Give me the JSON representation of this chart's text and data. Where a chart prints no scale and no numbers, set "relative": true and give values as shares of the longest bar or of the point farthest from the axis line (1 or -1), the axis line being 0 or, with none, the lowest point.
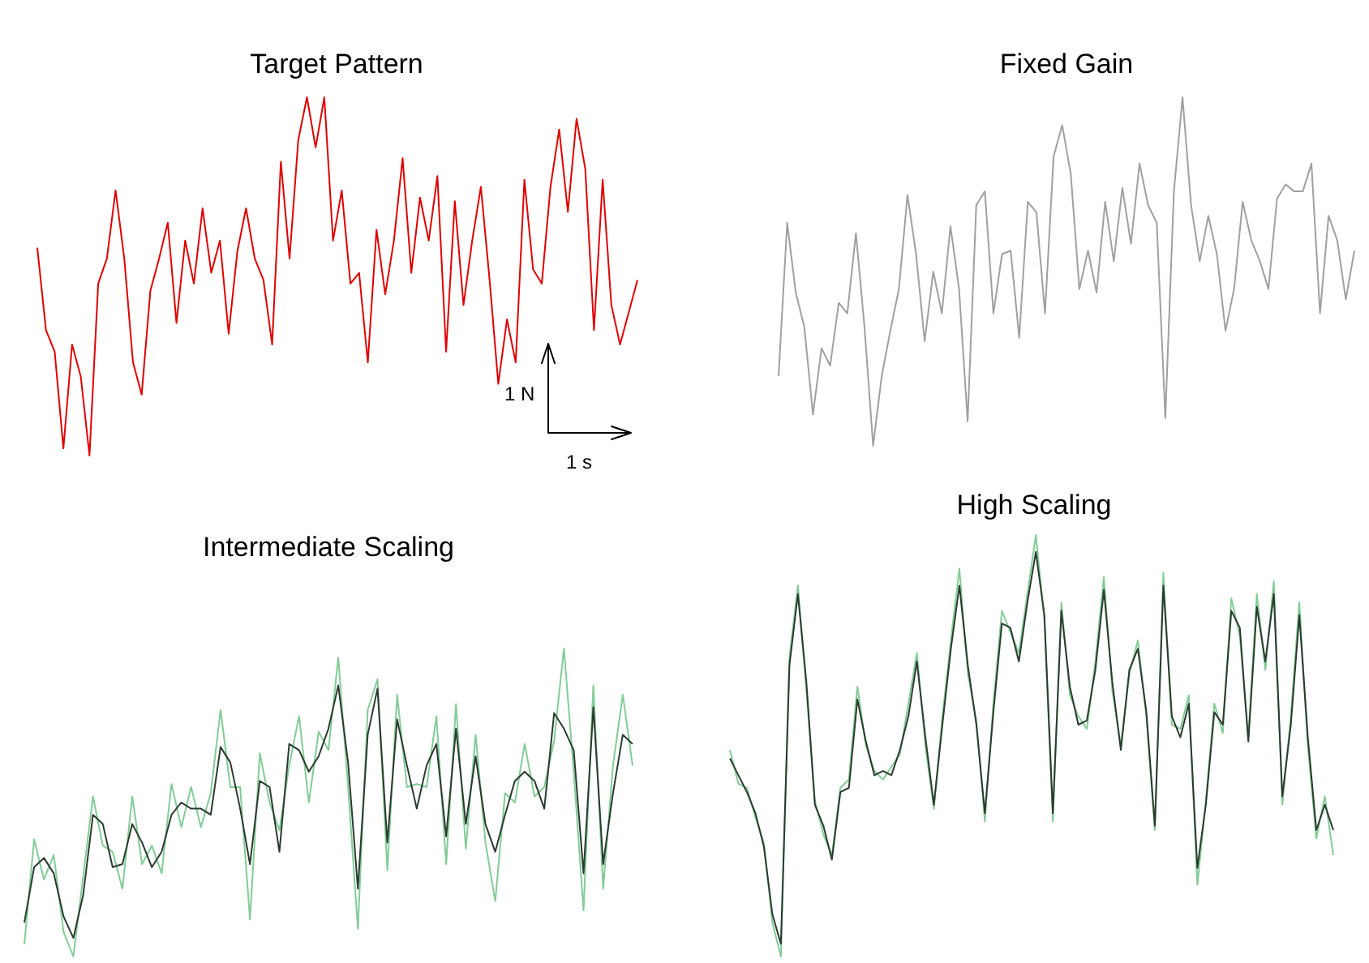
{
  "chart_data": [
    {
      "type": "line",
      "title": "Target Pattern",
      "relative": true,
      "annotations": [
        "1 N",
        "1 s"
      ],
      "categories": [
        null,
        null,
        null,
        null,
        null,
        null,
        null,
        null,
        null,
        null,
        null,
        null,
        null,
        null,
        null,
        null,
        null,
        null,
        null,
        null,
        null,
        null,
        null,
        null,
        null,
        null,
        null,
        null,
        null,
        null,
        null,
        null,
        null,
        null,
        null,
        null,
        null,
        null,
        null,
        null,
        null,
        null,
        null,
        null,
        null,
        null,
        null,
        null,
        null,
        null,
        null,
        null,
        null,
        null,
        null,
        null,
        null,
        null,
        null,
        null,
        null,
        null,
        null,
        null,
        null,
        null,
        null,
        null,
        null,
        null
      ],
      "series": [
        {
          "color": "#e00000",
          "values": [
            0.58,
            0.35,
            0.29,
            0.02,
            0.31,
            0.22,
            0,
            0.48,
            0.55,
            0.74,
            0.55,
            0.26,
            0.17,
            0.46,
            0.55,
            0.65,
            0.37,
            0.6,
            0.48,
            0.69,
            0.51,
            0.6,
            0.34,
            0.57,
            0.69,
            0.55,
            0.49,
            0.31,
            0.82,
            0.55,
            0.88,
            1,
            0.86,
            1,
            0.6,
            0.74,
            0.48,
            0.51,
            0.26,
            0.63,
            0.45,
            0.6,
            0.83,
            0.51,
            0.72,
            0.6,
            0.78,
            0.29,
            0.71,
            0.42,
            0.6,
            0.75,
            0.49,
            0.2,
            0.38,
            0.26,
            0.77,
            0.52,
            0.48,
            0.75,
            0.91,
            0.68,
            0.94,
            0.8,
            0.35,
            0.77,
            0.42,
            0.31,
            0.4,
            0.49
          ]
        }
      ]
    },
    {
      "type": "line",
      "title": "Fixed Gain",
      "relative": true,
      "categories": [
        null,
        null,
        null,
        null,
        null,
        null,
        null,
        null,
        null,
        null,
        null,
        null,
        null,
        null,
        null,
        null,
        null,
        null,
        null,
        null,
        null,
        null,
        null,
        null,
        null,
        null,
        null,
        null,
        null,
        null,
        null,
        null,
        null,
        null,
        null,
        null,
        null,
        null,
        null,
        null,
        null,
        null,
        null,
        null,
        null,
        null,
        null,
        null,
        null,
        null,
        null,
        null,
        null,
        null,
        null,
        null,
        null,
        null,
        null,
        null,
        null,
        null,
        null,
        null,
        null,
        null,
        null,
        null
      ],
      "series": [
        {
          "color": "#a0a0a0",
          "values": [
            0.2,
            0.64,
            0.44,
            0.34,
            0.09,
            0.28,
            0.23,
            0.41,
            0.38,
            0.61,
            0.34,
            0,
            0.2,
            0.33,
            0.45,
            0.72,
            0.55,
            0.3,
            0.5,
            0.38,
            0.63,
            0.45,
            0.07,
            0.69,
            0.73,
            0.38,
            0.55,
            0.56,
            0.31,
            0.7,
            0.67,
            0.38,
            0.83,
            0.92,
            0.78,
            0.45,
            0.56,
            0.44,
            0.7,
            0.53,
            0.74,
            0.58,
            0.81,
            0.69,
            0.64,
            0.08,
            0.73,
            1,
            0.69,
            0.53,
            0.66,
            0.55,
            0.33,
            0.45,
            0.7,
            0.59,
            0.53,
            0.45,
            0.71,
            0.75,
            0.73,
            0.73,
            0.81,
            0.38,
            0.66,
            0.59,
            0.42,
            0.56
          ]
        }
      ]
    },
    {
      "type": "line",
      "title": "Intermediate Scaling",
      "relative": true,
      "categories": [
        null,
        null,
        null,
        null,
        null,
        null,
        null,
        null,
        null,
        null,
        null,
        null,
        null,
        null,
        null,
        null,
        null,
        null,
        null,
        null,
        null,
        null,
        null,
        null,
        null,
        null,
        null,
        null,
        null,
        null,
        null,
        null,
        null,
        null,
        null,
        null,
        null,
        null,
        null,
        null,
        null,
        null,
        null,
        null,
        null,
        null,
        null,
        null,
        null,
        null,
        null,
        null,
        null,
        null,
        null,
        null,
        null,
        null,
        null,
        null,
        null,
        null,
        null
      ],
      "series": [
        {
          "color": "#82cc96",
          "values": [
            0.04,
            0.38,
            0.25,
            0.33,
            0.08,
            0,
            0.26,
            0.52,
            0.36,
            0.34,
            0.22,
            0.52,
            0.3,
            0.36,
            0.27,
            0.56,
            0.42,
            0.55,
            0.42,
            0.53,
            0.8,
            0.55,
            0.55,
            0.12,
            0.66,
            0.5,
            0.41,
            0.62,
            0.78,
            0.5,
            0.73,
            0.67,
            0.97,
            0.55,
            0.09,
            0.8,
            0.9,
            0.28,
            0.85,
            0.55,
            0.56,
            0.55,
            0.78,
            0.3,
            0.82,
            0.35,
            0.72,
            0.37,
            0.18,
            0.53,
            0.5,
            0.69,
            0.52,
            0.55,
            0.7,
            1,
            0.6,
            0.15,
            0.88,
            0.22,
            0.62,
            0.85,
            0.62
          ]
        },
        {
          "color": "#2b3a30",
          "values": [
            0.11,
            0.29,
            0.32,
            0.27,
            0.13,
            0.06,
            0.2,
            0.46,
            0.43,
            0.29,
            0.3,
            0.43,
            0.37,
            0.29,
            0.34,
            0.46,
            0.5,
            0.48,
            0.48,
            0.46,
            0.68,
            0.63,
            0.48,
            0.3,
            0.57,
            0.55,
            0.34,
            0.69,
            0.67,
            0.6,
            0.65,
            0.74,
            0.88,
            0.63,
            0.22,
            0.72,
            0.87,
            0.37,
            0.77,
            0.62,
            0.48,
            0.62,
            0.69,
            0.39,
            0.74,
            0.43,
            0.65,
            0.43,
            0.34,
            0.46,
            0.57,
            0.6,
            0.57,
            0.48,
            0.79,
            0.74,
            0.67,
            0.27,
            0.81,
            0.3,
            0.53,
            0.72,
            0.69
          ]
        }
      ]
    },
    {
      "type": "line",
      "title": "High Scaling",
      "relative": true,
      "categories": [
        null,
        null,
        null,
        null,
        null,
        null,
        null,
        null,
        null,
        null,
        null,
        null,
        null,
        null,
        null,
        null,
        null,
        null,
        null,
        null,
        null,
        null,
        null,
        null,
        null,
        null,
        null,
        null,
        null,
        null,
        null,
        null,
        null,
        null,
        null,
        null,
        null,
        null,
        null,
        null,
        null,
        null,
        null,
        null,
        null,
        null,
        null,
        null,
        null,
        null,
        null,
        null,
        null,
        null,
        null,
        null,
        null,
        null,
        null,
        null,
        null,
        null,
        null,
        null,
        null,
        null,
        null,
        null,
        null,
        null,
        null,
        null
      ],
      "series": [
        {
          "color": "#82cc96",
          "values": [
            0.49,
            0.41,
            0.4,
            0.33,
            0.27,
            0.08,
            0,
            0.71,
            0.88,
            0.63,
            0.37,
            0.29,
            0.24,
            0.4,
            0.42,
            0.64,
            0.5,
            0.44,
            0.42,
            0.45,
            0.48,
            0.6,
            0.72,
            0.5,
            0.35,
            0.57,
            0.75,
            0.92,
            0.67,
            0.56,
            0.32,
            0.6,
            0.82,
            0.77,
            0.72,
            0.86,
            1,
            0.8,
            0.32,
            0.84,
            0.62,
            0.57,
            0.54,
            0.7,
            0.9,
            0.63,
            0.5,
            0.67,
            0.75,
            0.57,
            0.3,
            0.91,
            0.55,
            0.54,
            0.62,
            0.17,
            0.37,
            0.6,
            0.53,
            0.85,
            0.76,
            0.52,
            0.86,
            0.68,
            0.89,
            0.36,
            0.57,
            0.84,
            0.5,
            0.28,
            0.38,
            0.24
          ]
        },
        {
          "color": "#2b3a30",
          "values": [
            0.47,
            0.43,
            0.39,
            0.34,
            0.26,
            0.1,
            0.03,
            0.69,
            0.86,
            0.65,
            0.36,
            0.31,
            0.23,
            0.39,
            0.4,
            0.61,
            0.51,
            0.43,
            0.44,
            0.43,
            0.49,
            0.57,
            0.7,
            0.52,
            0.36,
            0.55,
            0.73,
            0.88,
            0.69,
            0.55,
            0.34,
            0.58,
            0.79,
            0.78,
            0.7,
            0.84,
            0.96,
            0.81,
            0.34,
            0.82,
            0.64,
            0.55,
            0.56,
            0.68,
            0.87,
            0.65,
            0.49,
            0.68,
            0.73,
            0.58,
            0.31,
            0.88,
            0.57,
            0.52,
            0.6,
            0.21,
            0.36,
            0.58,
            0.55,
            0.82,
            0.78,
            0.51,
            0.83,
            0.7,
            0.86,
            0.38,
            0.55,
            0.81,
            0.52,
            0.3,
            0.36,
            0.3
          ]
        }
      ]
    }
  ]
}
